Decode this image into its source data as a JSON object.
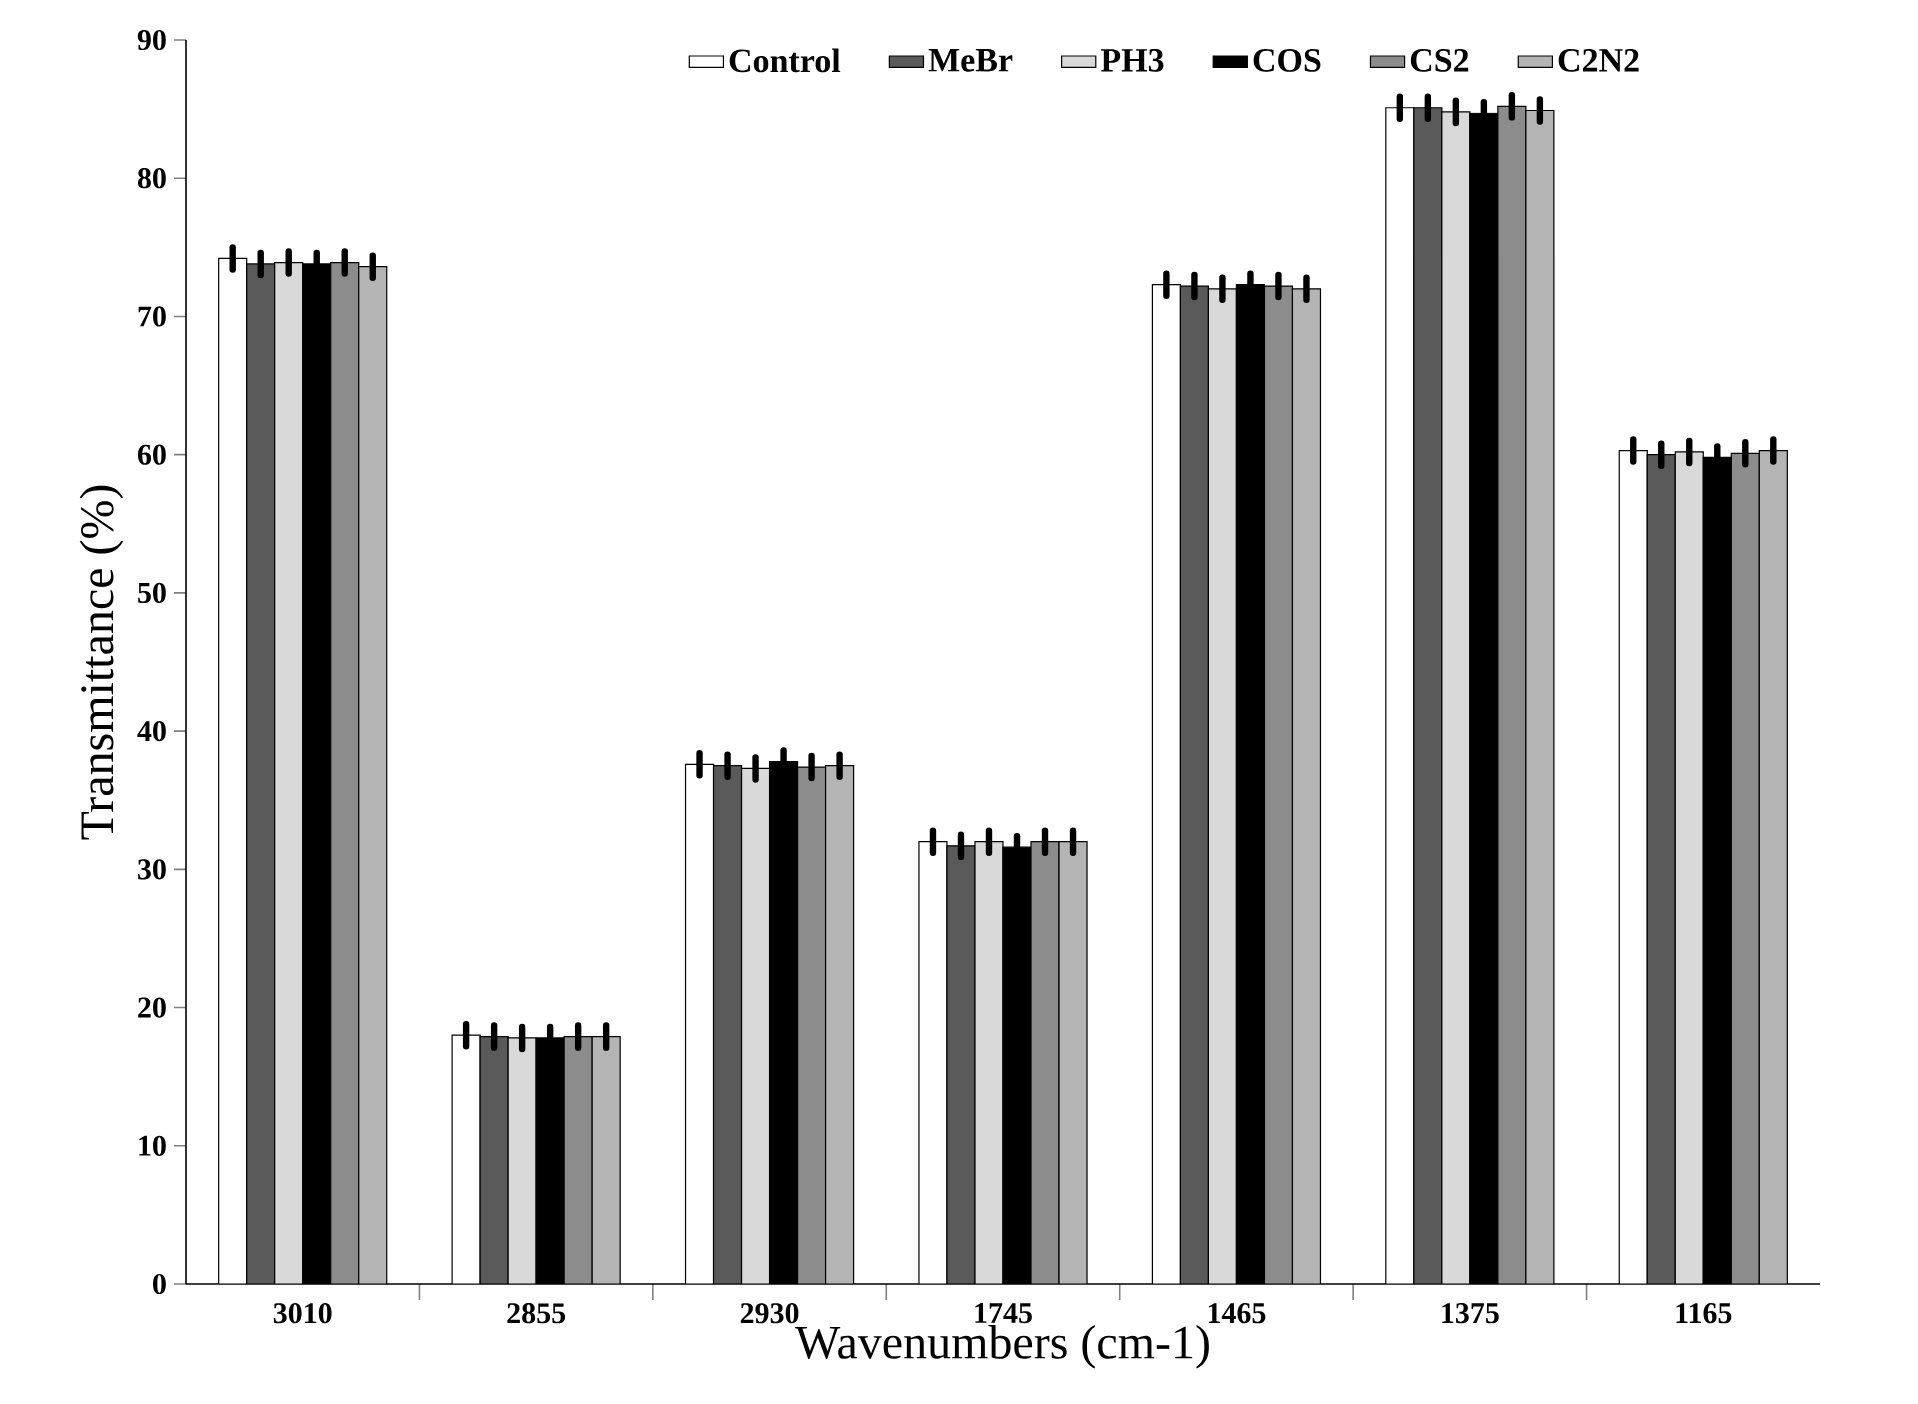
{
  "chart_data": {
    "type": "bar",
    "xlabel": "Wavenumbers (cm-1)",
    "ylabel": "Transmittance (%)",
    "categories": [
      "3010",
      "2855",
      "2930",
      "1745",
      "1465",
      "1375",
      "1165"
    ],
    "ylim": [
      0,
      90
    ],
    "yticks": [
      0,
      10,
      20,
      30,
      40,
      50,
      60,
      70,
      80,
      90
    ],
    "legend": "top",
    "grid": false,
    "series": [
      {
        "name": "Control",
        "color": "#ffffff",
        "values": [
          74.2,
          18.0,
          37.6,
          32.0,
          72.3,
          85.1,
          60.3
        ],
        "errors": [
          0.8,
          0.8,
          0.8,
          0.8,
          0.8,
          0.8,
          0.8
        ]
      },
      {
        "name": "MeBr",
        "color": "#5a5a5a",
        "values": [
          73.8,
          17.9,
          37.5,
          31.7,
          72.2,
          85.1,
          60.0
        ],
        "errors": [
          0.8,
          0.8,
          0.8,
          0.8,
          0.8,
          0.8,
          0.8
        ]
      },
      {
        "name": "PH3",
        "color": "#d9d9d9",
        "values": [
          73.9,
          17.8,
          37.3,
          32.0,
          72.0,
          84.8,
          60.2
        ],
        "errors": [
          0.8,
          0.8,
          0.8,
          0.8,
          0.8,
          0.8,
          0.8
        ]
      },
      {
        "name": "COS",
        "color": "#000000",
        "values": [
          73.8,
          17.8,
          37.8,
          31.6,
          72.3,
          84.7,
          59.8
        ],
        "errors": [
          0.8,
          0.8,
          0.8,
          0.8,
          0.8,
          0.8,
          0.8
        ]
      },
      {
        "name": "CS2",
        "color": "#8c8c8c",
        "values": [
          73.9,
          17.9,
          37.4,
          32.0,
          72.2,
          85.2,
          60.1
        ],
        "errors": [
          0.8,
          0.8,
          0.8,
          0.8,
          0.8,
          0.8,
          0.8
        ]
      },
      {
        "name": "C2N2",
        "color": "#b4b4b4",
        "values": [
          73.6,
          17.9,
          37.5,
          32.0,
          72.0,
          84.9,
          60.3
        ],
        "errors": [
          0.8,
          0.8,
          0.8,
          0.8,
          0.8,
          0.8,
          0.8
        ]
      }
    ]
  }
}
